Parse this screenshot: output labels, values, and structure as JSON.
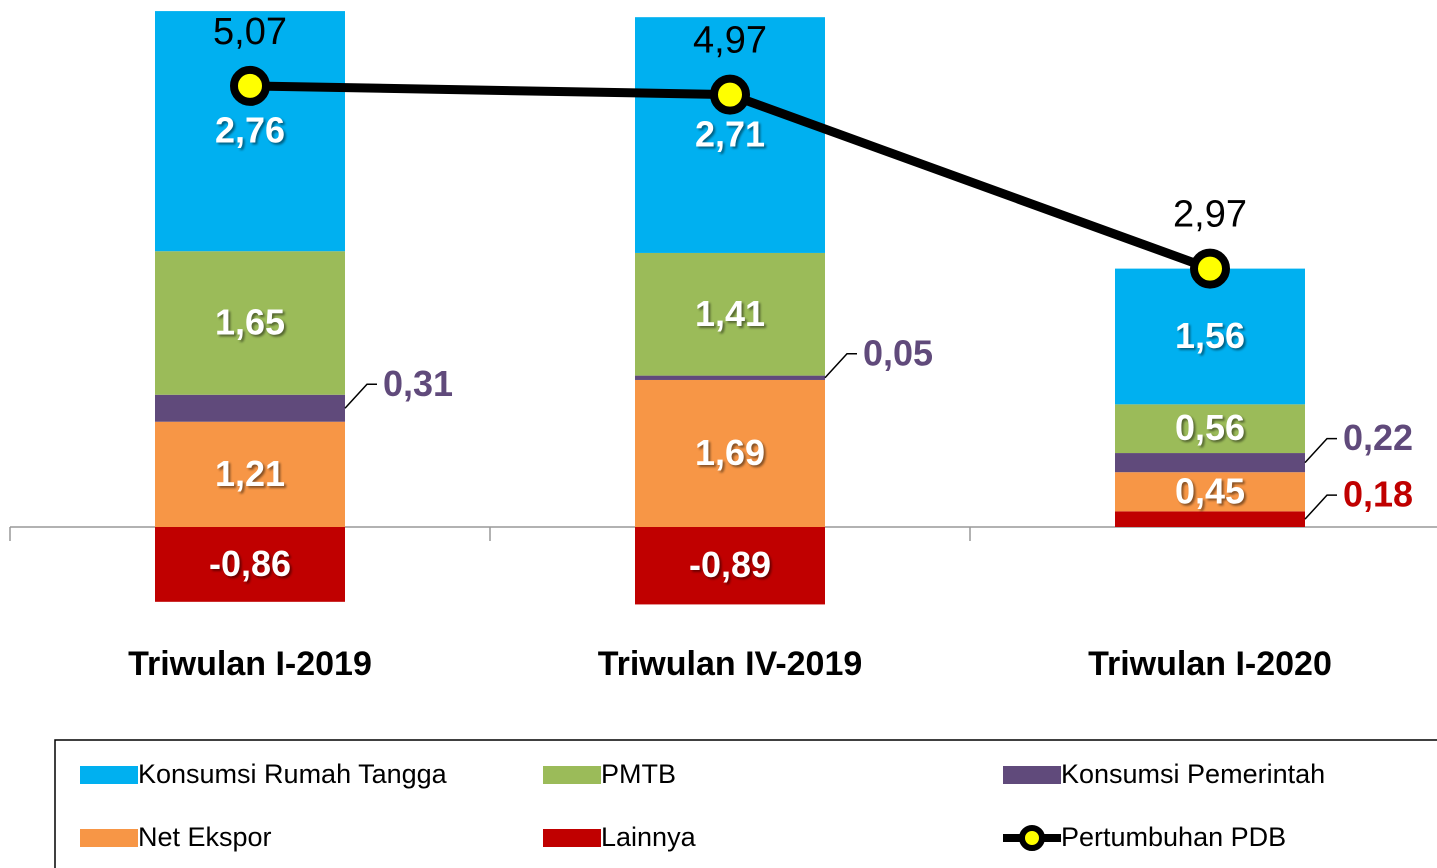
{
  "chart_data": {
    "type": "bar",
    "stacked": true,
    "categories": [
      "Triwulan I-2019",
      "Triwulan IV-2019",
      "Triwulan I-2020"
    ],
    "ylim": [
      -1,
      6
    ],
    "series": [
      {
        "name": "Konsumsi Rumah Tangga",
        "color": "#00b0f0",
        "values": [
          2.76,
          2.71,
          1.56
        ],
        "value_labels": [
          "2,76",
          "2,71",
          "1,56"
        ]
      },
      {
        "name": "PMTB",
        "color": "#9bbb59",
        "values": [
          1.65,
          1.41,
          0.56
        ],
        "value_labels": [
          "1,65",
          "1,41",
          "0,56"
        ]
      },
      {
        "name": "Konsumsi Pemerintah",
        "color": "#604a7b",
        "values": [
          0.31,
          0.05,
          0.22
        ],
        "value_labels": [
          "0,31",
          "0,05",
          "0,22"
        ]
      },
      {
        "name": "Net Ekspor",
        "color": "#f79646",
        "values": [
          1.21,
          1.69,
          0.45
        ],
        "value_labels": [
          "1,21",
          "1,69",
          "0,45"
        ]
      },
      {
        "name": "Lainnya",
        "color": "#c00000",
        "values": [
          -0.86,
          -0.89,
          0.18
        ],
        "value_labels": [
          "-0,86",
          "-0,89",
          "0,18"
        ]
      },
      {
        "name": "Pertumbuhan PDB",
        "type": "line",
        "color": "#000000",
        "marker_color": "#ffff00",
        "values": [
          5.07,
          4.97,
          2.97
        ],
        "value_labels": [
          "5,07",
          "4,97",
          "2,97"
        ]
      }
    ]
  }
}
